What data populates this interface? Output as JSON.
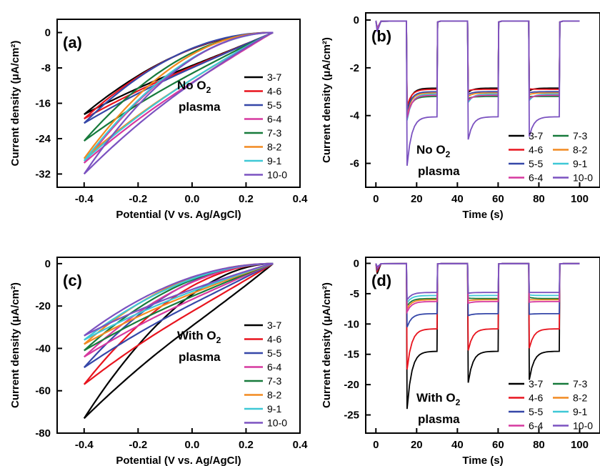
{
  "chart_data": [
    {
      "id": "a",
      "type": "line",
      "panel_label": "(a)",
      "xlabel": "Potential (V vs. Ag/AgCl)",
      "ylabel": "Current density (μA/cm²)",
      "xlim": [
        -0.5,
        0.4
      ],
      "ylim": [
        -35,
        3
      ],
      "xticks": [
        "-0.4",
        "-0.2",
        "0.0",
        "0.2",
        "0.4"
      ],
      "xtick_values": [
        -0.4,
        -0.2,
        0.0,
        0.2,
        0.4
      ],
      "yticks": [
        "0",
        "-8",
        "-16",
        "-24",
        "-32"
      ],
      "ytick_values": [
        0,
        -8,
        -16,
        -24,
        -32
      ],
      "annotation": [
        "No O₂",
        "plasma"
      ],
      "legend_cols": 1,
      "series": [
        {
          "name": "3-7",
          "color": "#000000",
          "start": -18.5
        },
        {
          "name": "4-6",
          "color": "#e8141e",
          "start": -19.5
        },
        {
          "name": "5-5",
          "color": "#3547a8",
          "start": -20.5
        },
        {
          "name": "6-4",
          "color": "#d6399f",
          "start": -29.5
        },
        {
          "name": "7-3",
          "color": "#177a3b",
          "start": -24.5
        },
        {
          "name": "8-2",
          "color": "#f28a20",
          "start": -28.5
        },
        {
          "name": "9-1",
          "color": "#3ec8d6",
          "start": -29.0
        },
        {
          "name": "10-0",
          "color": "#7b52c0",
          "start": -32.0
        }
      ],
      "scan_end": 0.3
    },
    {
      "id": "b",
      "type": "line",
      "panel_label": "(b)",
      "xlabel": "Time (s)",
      "ylabel": "Current density (μA/cm²)",
      "xlim": [
        -5,
        110
      ],
      "ylim": [
        -7,
        0.3
      ],
      "xticks": [
        "0",
        "20",
        "40",
        "60",
        "80",
        "100"
      ],
      "xtick_values": [
        0,
        20,
        40,
        60,
        80,
        100
      ],
      "yticks": [
        "0",
        "-2",
        "-4",
        "-6"
      ],
      "ytick_values": [
        0,
        -2,
        -4,
        -6
      ],
      "annotation": [
        "No O₂",
        "plasma"
      ],
      "legend_cols": 2,
      "light_on": [
        15,
        45,
        75
      ],
      "light_off": [
        30,
        60,
        90
      ],
      "t_end": 100,
      "series": [
        {
          "name": "3-7",
          "color": "#000000",
          "spike": -3.7,
          "plateau": -2.85
        },
        {
          "name": "7-3",
          "color": "#177a3b",
          "spike": -4.0,
          "plateau": -3.2
        },
        {
          "name": "4-6",
          "color": "#e8141e",
          "spike": -3.6,
          "plateau": -2.9
        },
        {
          "name": "8-2",
          "color": "#f28a20",
          "spike": -3.9,
          "plateau": -3.05
        },
        {
          "name": "5-5",
          "color": "#3547a8",
          "spike": -3.8,
          "plateau": -3.0
        },
        {
          "name": "9-1",
          "color": "#3ec8d6",
          "spike": -4.2,
          "plateau": -3.1
        },
        {
          "name": "6-4",
          "color": "#d6399f",
          "spike": -4.1,
          "plateau": -3.15
        },
        {
          "name": "10-0",
          "color": "#7b52c0",
          "spike": -6.1,
          "plateau": -4.05
        }
      ]
    },
    {
      "id": "c",
      "type": "line",
      "panel_label": "(c)",
      "xlabel": "Potential (V vs. Ag/AgCl)",
      "ylabel": "Current density (μA/cm²)",
      "xlim": [
        -0.5,
        0.4
      ],
      "ylim": [
        -80,
        3
      ],
      "xticks": [
        "-0.4",
        "-0.2",
        "0.0",
        "0.2",
        "0.4"
      ],
      "xtick_values": [
        -0.4,
        -0.2,
        0.0,
        0.2,
        0.4
      ],
      "yticks": [
        "0",
        "-20",
        "-40",
        "-60",
        "-80"
      ],
      "ytick_values": [
        0,
        -20,
        -40,
        -60,
        -80
      ],
      "annotation": [
        "With O₂",
        "plasma"
      ],
      "legend_cols": 1,
      "series": [
        {
          "name": "3-7",
          "color": "#000000",
          "start": -73
        },
        {
          "name": "4-6",
          "color": "#e8141e",
          "start": -57
        },
        {
          "name": "5-5",
          "color": "#3547a8",
          "start": -49
        },
        {
          "name": "6-4",
          "color": "#d6399f",
          "start": -44
        },
        {
          "name": "7-3",
          "color": "#177a3b",
          "start": -41
        },
        {
          "name": "8-2",
          "color": "#f28a20",
          "start": -38
        },
        {
          "name": "9-1",
          "color": "#3ec8d6",
          "start": -36
        },
        {
          "name": "10-0",
          "color": "#7b52c0",
          "start": -34
        }
      ],
      "scan_end": 0.3
    },
    {
      "id": "d",
      "type": "line",
      "panel_label": "(d)",
      "xlabel": "Time (s)",
      "ylabel": "Current density (μA/cm²)",
      "xlim": [
        -5,
        110
      ],
      "ylim": [
        -28,
        1
      ],
      "xticks": [
        "0",
        "20",
        "40",
        "60",
        "80",
        "100"
      ],
      "xtick_values": [
        0,
        20,
        40,
        60,
        80,
        100
      ],
      "yticks": [
        "0",
        "-5",
        "-10",
        "-15",
        "-20",
        "-25"
      ],
      "ytick_values": [
        0,
        -5,
        -10,
        -15,
        -20,
        -25
      ],
      "annotation": [
        "With O₂",
        "plasma"
      ],
      "legend_cols": 2,
      "light_on": [
        15,
        45,
        75
      ],
      "light_off": [
        30,
        60,
        90
      ],
      "t_end": 100,
      "series": [
        {
          "name": "3-7",
          "color": "#000000",
          "spike": -24,
          "plateau": -14.5
        },
        {
          "name": "7-3",
          "color": "#177a3b",
          "spike": -7.0,
          "plateau": -5.8
        },
        {
          "name": "4-6",
          "color": "#e8141e",
          "spike": -17.5,
          "plateau": -10.8
        },
        {
          "name": "8-2",
          "color": "#f28a20",
          "spike": -7.5,
          "plateau": -6.0
        },
        {
          "name": "5-5",
          "color": "#3547a8",
          "spike": -10.5,
          "plateau": -8.3
        },
        {
          "name": "9-1",
          "color": "#3ec8d6",
          "spike": -6.5,
          "plateau": -5.3
        },
        {
          "name": "6-4",
          "color": "#d6399f",
          "spike": -8.0,
          "plateau": -6.3
        },
        {
          "name": "10-0",
          "color": "#7b52c0",
          "spike": -6.0,
          "plateau": -4.8
        }
      ]
    }
  ]
}
